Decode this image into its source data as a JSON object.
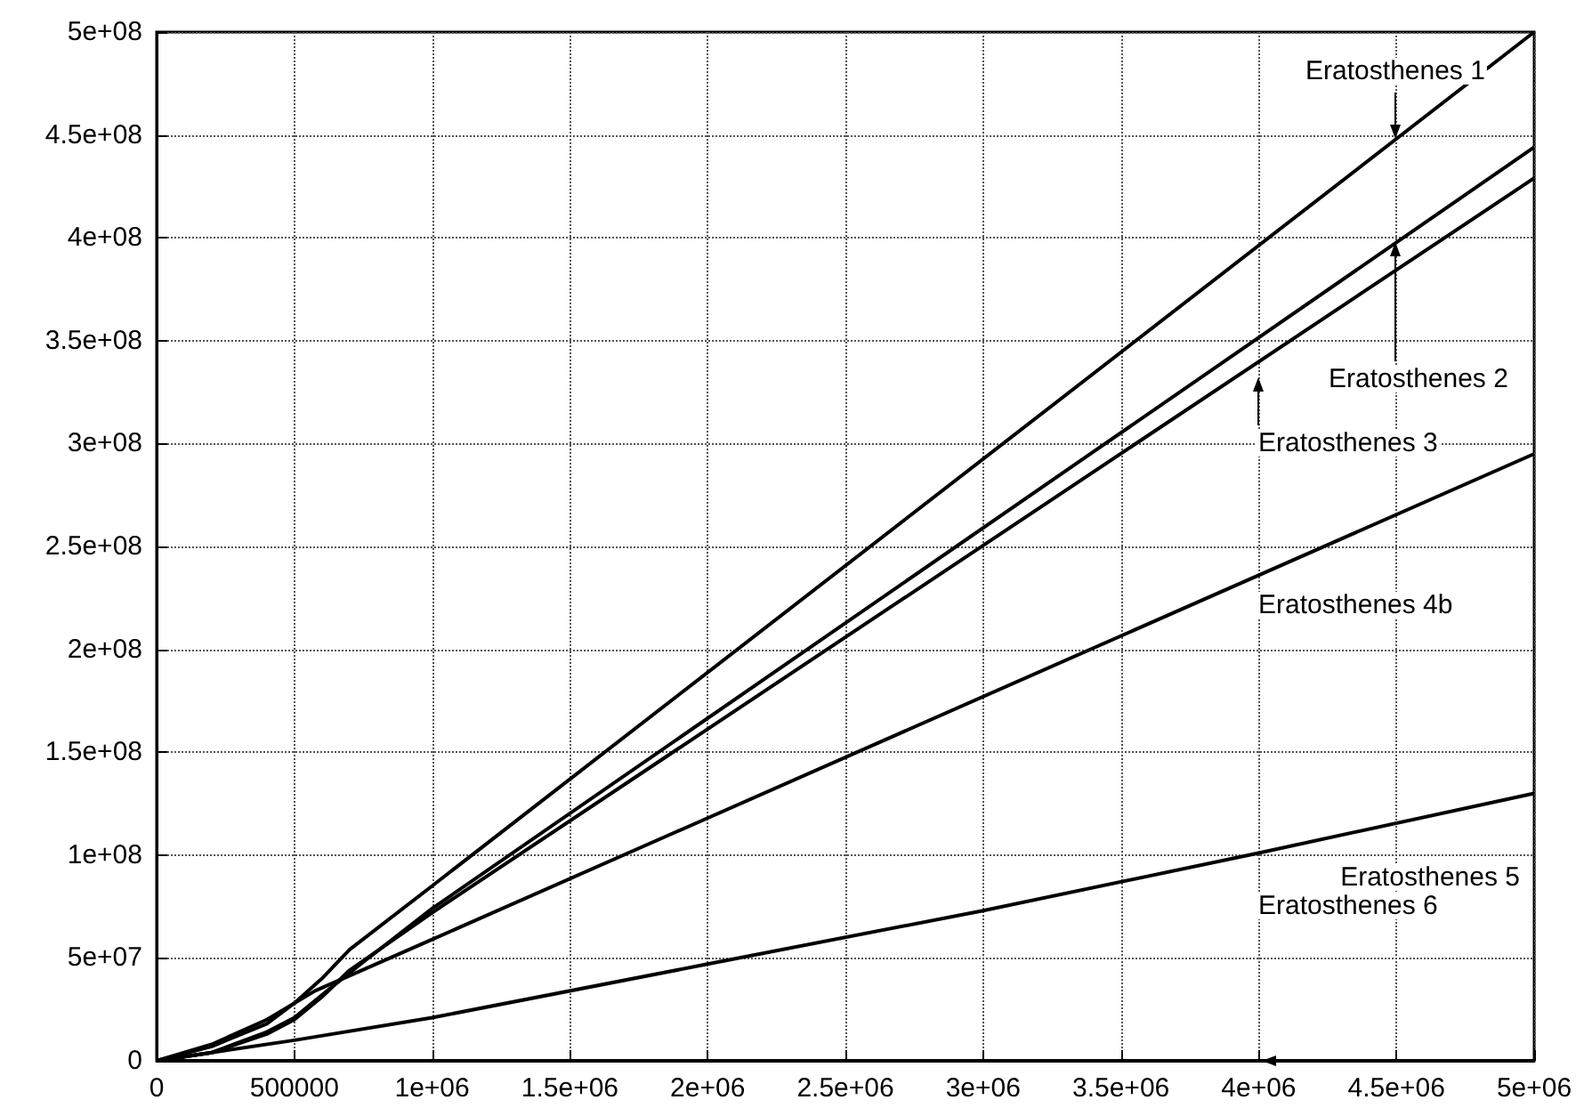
{
  "chart_data": {
    "type": "line",
    "xlim": [
      0,
      5000000
    ],
    "xticks": [
      0,
      500000,
      {
        "value": 1000000,
        "label": "1e+06"
      },
      {
        "value": 1500000,
        "label": "1.5e+06"
      },
      {
        "value": 2000000,
        "label": "2e+06"
      },
      {
        "value": 2500000,
        "label": "2.5e+06"
      },
      {
        "value": 3000000,
        "label": "3e+06"
      },
      {
        "value": 3500000,
        "label": "3.5e+06"
      },
      {
        "value": 4000000,
        "label": "4e+06"
      },
      {
        "value": 4500000,
        "label": "4.5e+06"
      },
      {
        "value": 5000000,
        "label": "5e+06"
      }
    ],
    "ylim": [
      0,
      500000000
    ],
    "yticks": [
      0,
      {
        "value": 50000000,
        "label": "5e+07"
      },
      {
        "value": 100000000,
        "label": "1e+08"
      },
      {
        "value": 150000000,
        "label": "1.5e+08"
      },
      {
        "value": 200000000,
        "label": "2e+08"
      },
      {
        "value": 250000000,
        "label": "2.5e+08"
      },
      {
        "value": 300000000,
        "label": "3e+08"
      },
      {
        "value": 350000000,
        "label": "3.5e+08"
      },
      {
        "value": 400000000,
        "label": "4e+08"
      },
      {
        "value": 450000000,
        "label": "4.5e+08"
      },
      {
        "value": 500000000,
        "label": "5e+08"
      }
    ],
    "grid": true,
    "marker": "none",
    "line_style": "solid",
    "series": [
      {
        "color": "#000000",
        "x": [
          0,
          200000,
          400000,
          500000,
          600000,
          700000,
          1000000,
          5000000
        ],
        "values": [
          0,
          7000000,
          18000000,
          28000000,
          40000000,
          54000000,
          85000000,
          500000000
        ]
      },
      {
        "color": "#000000",
        "x": [
          0,
          200000,
          400000,
          500000,
          600000,
          750000,
          1000000,
          5000000
        ],
        "values": [
          0,
          4000000,
          14000000,
          21000000,
          32000000,
          48000000,
          74000000,
          444000000
        ]
      },
      {
        "color": "#000000",
        "x": [
          0,
          200000,
          400000,
          500000,
          600000,
          700000,
          1000000,
          5000000
        ],
        "values": [
          0,
          4000000,
          13000000,
          20000000,
          31000000,
          44000000,
          72000000,
          429000000
        ]
      },
      {
        "color": "#000000",
        "x": [
          0,
          200000,
          400000,
          575000,
          1000000,
          5000000
        ],
        "values": [
          0,
          8000000,
          20000000,
          34000000,
          59000000,
          295000000
        ]
      },
      {
        "color": "#000000",
        "x": [
          0,
          500000,
          1000000,
          2000000,
          3000000,
          4000000,
          5000000
        ],
        "values": [
          0,
          10000000,
          21000000,
          47000000,
          73000000,
          101000000,
          130000000
        ]
      },
      {
        "color": "#000000",
        "x": [
          0,
          5000000
        ],
        "values": [
          0,
          0
        ]
      }
    ],
    "annotations": [
      "Eratosthenes 1",
      "Eratosthenes 2",
      "Eratosthenes 3",
      "Eratosthenes 4b",
      "Eratosthenes 5",
      "Eratosthenes 6"
    ]
  }
}
